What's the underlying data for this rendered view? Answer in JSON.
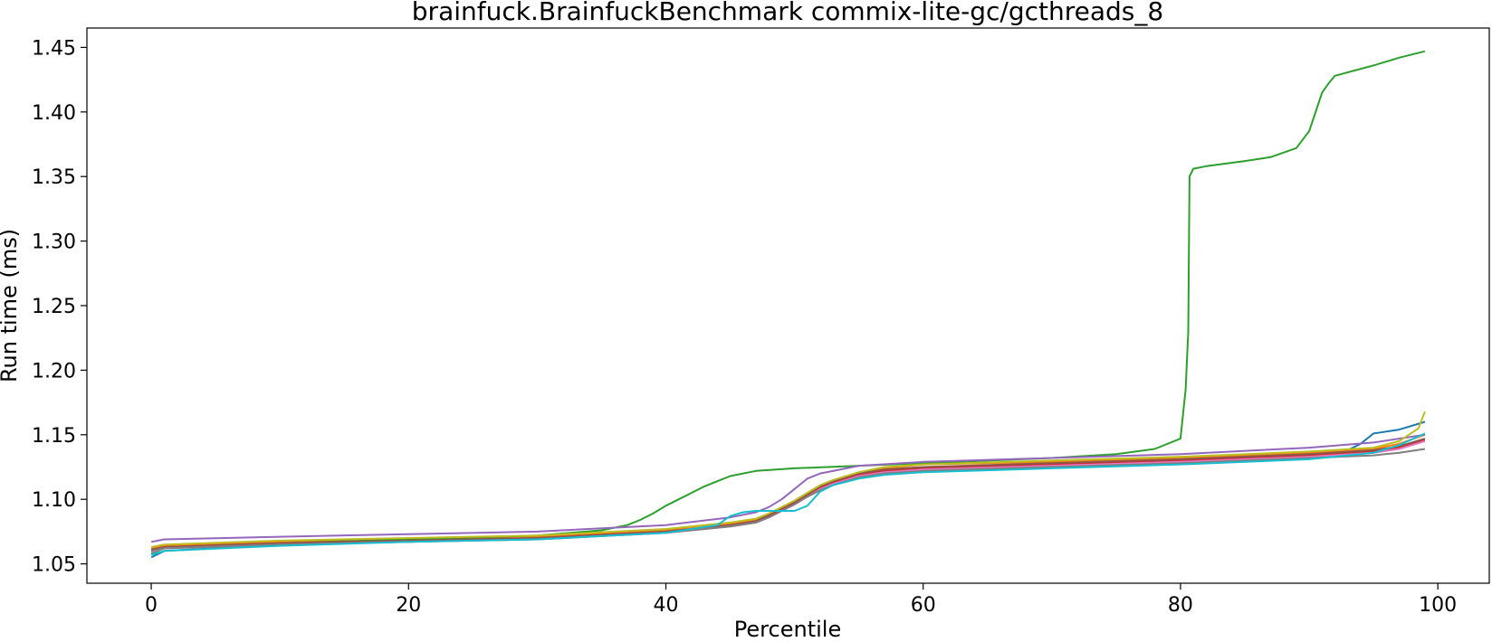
{
  "chart_data": {
    "type": "line",
    "title": "brainfuck.BrainfuckBenchmark commix-lite-gc/gcthreads_8",
    "xlabel": "Percentile",
    "ylabel": "Run time (ms)",
    "xlim": [
      -5,
      104
    ],
    "ylim": [
      1.035,
      1.465
    ],
    "xticks": [
      0,
      20,
      40,
      60,
      80,
      100
    ],
    "xtick_labels": [
      "0",
      "20",
      "40",
      "60",
      "80",
      "100"
    ],
    "yticks": [
      1.05,
      1.1,
      1.15,
      1.2,
      1.25,
      1.3,
      1.35,
      1.4,
      1.45
    ],
    "ytick_labels": [
      "1.05",
      "1.10",
      "1.15",
      "1.20",
      "1.25",
      "1.30",
      "1.35",
      "1.40",
      "1.45"
    ],
    "grid": false,
    "legend": "none",
    "series": [
      {
        "color": "#1f77b4",
        "x": [
          0,
          1,
          10,
          20,
          30,
          40,
          45,
          47,
          48,
          50,
          51,
          52,
          53,
          55,
          57,
          60,
          70,
          80,
          90,
          93,
          94,
          95,
          97,
          99
        ],
        "y": [
          1.055,
          1.06,
          1.065,
          1.068,
          1.07,
          1.075,
          1.08,
          1.083,
          1.087,
          1.097,
          1.102,
          1.108,
          1.112,
          1.118,
          1.121,
          1.123,
          1.126,
          1.129,
          1.134,
          1.138,
          1.143,
          1.151,
          1.154,
          1.16
        ]
      },
      {
        "color": "#ff7f0e",
        "x": [
          0,
          1,
          10,
          20,
          30,
          40,
          45,
          47,
          48,
          50,
          51,
          52,
          53,
          55,
          57,
          60,
          70,
          80,
          90,
          95,
          97,
          99
        ],
        "y": [
          1.062,
          1.064,
          1.067,
          1.069,
          1.071,
          1.076,
          1.081,
          1.084,
          1.088,
          1.098,
          1.104,
          1.11,
          1.114,
          1.12,
          1.124,
          1.127,
          1.129,
          1.132,
          1.136,
          1.139,
          1.143,
          1.15
        ]
      },
      {
        "color": "#2ca02c",
        "x": [
          0,
          1,
          10,
          20,
          30,
          35,
          37,
          38,
          39,
          40,
          41,
          42,
          43,
          44,
          45,
          47,
          50,
          55,
          60,
          70,
          75,
          78,
          80,
          80.4,
          80.6,
          80.7,
          81,
          82,
          85,
          87,
          89,
          90,
          90.5,
          91,
          91.5,
          92,
          95,
          97,
          99
        ],
        "y": [
          1.058,
          1.062,
          1.066,
          1.069,
          1.072,
          1.076,
          1.08,
          1.084,
          1.089,
          1.095,
          1.1,
          1.105,
          1.11,
          1.114,
          1.118,
          1.122,
          1.124,
          1.126,
          1.128,
          1.132,
          1.135,
          1.139,
          1.147,
          1.185,
          1.23,
          1.35,
          1.356,
          1.358,
          1.362,
          1.365,
          1.372,
          1.385,
          1.4,
          1.415,
          1.422,
          1.428,
          1.436,
          1.442,
          1.447
        ]
      },
      {
        "color": "#d62728",
        "x": [
          0,
          1,
          10,
          20,
          30,
          40,
          45,
          47,
          48,
          50,
          51,
          52,
          53,
          55,
          57,
          60,
          70,
          80,
          90,
          95,
          97,
          99
        ],
        "y": [
          1.06,
          1.063,
          1.066,
          1.068,
          1.07,
          1.075,
          1.08,
          1.083,
          1.087,
          1.097,
          1.103,
          1.109,
          1.113,
          1.119,
          1.122,
          1.124,
          1.127,
          1.13,
          1.134,
          1.137,
          1.14,
          1.146
        ]
      },
      {
        "color": "#9467bd",
        "x": [
          0,
          1,
          10,
          20,
          30,
          40,
          45,
          47,
          48,
          49,
          50,
          51,
          52,
          55,
          60,
          70,
          80,
          90,
          95,
          99
        ],
        "y": [
          1.067,
          1.069,
          1.071,
          1.073,
          1.075,
          1.08,
          1.086,
          1.09,
          1.094,
          1.1,
          1.108,
          1.116,
          1.12,
          1.126,
          1.129,
          1.132,
          1.135,
          1.14,
          1.144,
          1.15
        ]
      },
      {
        "color": "#8c564b",
        "x": [
          0,
          1,
          10,
          20,
          30,
          40,
          45,
          47,
          48,
          50,
          51,
          52,
          53,
          55,
          57,
          60,
          70,
          80,
          90,
          95,
          97,
          99
        ],
        "y": [
          1.061,
          1.063,
          1.066,
          1.068,
          1.07,
          1.075,
          1.08,
          1.083,
          1.088,
          1.098,
          1.104,
          1.11,
          1.114,
          1.12,
          1.123,
          1.125,
          1.128,
          1.131,
          1.135,
          1.138,
          1.141,
          1.147
        ]
      },
      {
        "color": "#e377c2",
        "x": [
          0,
          1,
          10,
          20,
          30,
          40,
          45,
          47,
          48,
          50,
          51,
          52,
          53,
          55,
          57,
          60,
          70,
          80,
          90,
          95,
          97,
          99
        ],
        "y": [
          1.059,
          1.062,
          1.065,
          1.067,
          1.069,
          1.074,
          1.079,
          1.082,
          1.086,
          1.096,
          1.102,
          1.108,
          1.112,
          1.118,
          1.121,
          1.123,
          1.126,
          1.129,
          1.133,
          1.136,
          1.139,
          1.145
        ]
      },
      {
        "color": "#7f7f7f",
        "x": [
          0,
          1,
          10,
          20,
          30,
          40,
          45,
          47,
          48,
          50,
          51,
          52,
          53,
          55,
          57,
          60,
          70,
          80,
          90,
          95,
          97,
          99
        ],
        "y": [
          1.06,
          1.062,
          1.065,
          1.067,
          1.069,
          1.074,
          1.079,
          1.082,
          1.086,
          1.096,
          1.102,
          1.107,
          1.111,
          1.117,
          1.12,
          1.122,
          1.125,
          1.128,
          1.132,
          1.134,
          1.136,
          1.139
        ]
      },
      {
        "color": "#bcbd22",
        "x": [
          0,
          1,
          10,
          20,
          30,
          40,
          45,
          47,
          48,
          50,
          51,
          52,
          53,
          55,
          57,
          60,
          70,
          80,
          90,
          95,
          97,
          98.5,
          99
        ],
        "y": [
          1.063,
          1.065,
          1.068,
          1.07,
          1.072,
          1.077,
          1.082,
          1.085,
          1.089,
          1.099,
          1.105,
          1.111,
          1.115,
          1.121,
          1.125,
          1.127,
          1.13,
          1.133,
          1.137,
          1.14,
          1.145,
          1.155,
          1.168
        ]
      },
      {
        "color": "#17becf",
        "x": [
          0,
          1,
          10,
          20,
          30,
          40,
          44,
          45,
          46,
          47,
          48,
          49,
          50,
          51,
          52,
          53,
          55,
          57,
          60,
          70,
          80,
          90,
          95,
          97,
          99
        ],
        "y": [
          1.057,
          1.06,
          1.064,
          1.067,
          1.069,
          1.074,
          1.08,
          1.087,
          1.09,
          1.091,
          1.091,
          1.091,
          1.091,
          1.095,
          1.106,
          1.111,
          1.116,
          1.119,
          1.121,
          1.124,
          1.127,
          1.131,
          1.136,
          1.142,
          1.151
        ]
      }
    ]
  }
}
